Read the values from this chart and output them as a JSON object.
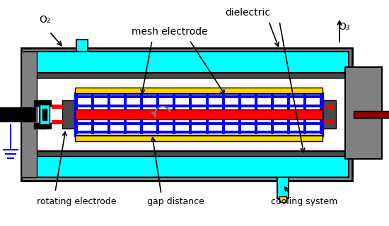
{
  "fig_width": 5.5,
  "fig_height": 3.2,
  "dpi": 100,
  "bg_color": "#ffffff",
  "colors": {
    "cyan": "#00ffff",
    "dark_gray": "#4a4a4a",
    "mid_gray": "#808080",
    "light_gray": "#c0c0c0",
    "black": "#000000",
    "blue": "#0000ff",
    "red": "#ff0000",
    "yellow": "#ffd700",
    "dark_red": "#8B0000",
    "white": "#ffffff"
  },
  "labels": {
    "o2": "O₂",
    "o3": "O₃",
    "mesh_electrode": "mesh electrode",
    "rotating_electrode": "rotating electrode",
    "gap_distance": "gap distance",
    "cooling_system": "cooling system",
    "dielectric": "dielectric"
  }
}
